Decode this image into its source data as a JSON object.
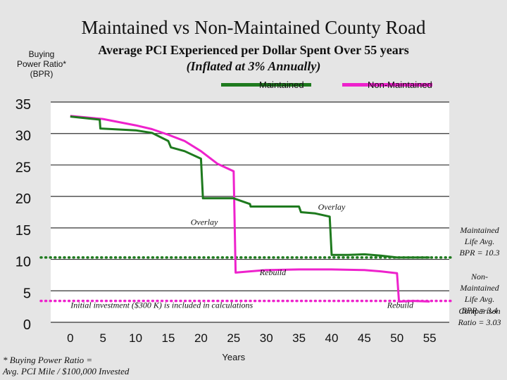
{
  "chart_data": {
    "type": "line",
    "title": "Maintained vs Non-Maintained County Road",
    "subtitle_line1": "Average PCI Experienced per Dollar Spent Over 55 years",
    "subtitle_line2": "(Inflated at 3% Annually)",
    "ylabel": "Buying Power Ratio* (BPR)",
    "xlabel": "Years",
    "xlim": [
      -3,
      58
    ],
    "ylim": [
      0,
      35
    ],
    "x_ticks": [
      0,
      5,
      10,
      15,
      20,
      25,
      30,
      35,
      40,
      45,
      50,
      55
    ],
    "y_ticks": [
      0,
      5,
      10,
      15,
      20,
      25,
      30,
      35
    ],
    "grid": "horizontal",
    "legend_position": "top-right",
    "series": [
      {
        "name": "Maintained",
        "color": "#1e7a1e",
        "points": [
          [
            0,
            32.7
          ],
          [
            4.5,
            32.2
          ],
          [
            4.6,
            30.8
          ],
          [
            10,
            30.5
          ],
          [
            12.5,
            30.1
          ],
          [
            15,
            28.8
          ],
          [
            15.4,
            27.8
          ],
          [
            17.5,
            27.2
          ],
          [
            20,
            26
          ],
          [
            20.3,
            19.7
          ],
          [
            25,
            19.7
          ],
          [
            27.5,
            18.8
          ],
          [
            27.6,
            18.4
          ],
          [
            30,
            18.4
          ],
          [
            35,
            18.4
          ],
          [
            35.3,
            17.5
          ],
          [
            37.5,
            17.3
          ],
          [
            39.7,
            16.8
          ],
          [
            40,
            10.7
          ],
          [
            42.5,
            10.7
          ],
          [
            45,
            10.8
          ],
          [
            47.5,
            10.6
          ],
          [
            50,
            10.3
          ],
          [
            55,
            10.3
          ]
        ]
      },
      {
        "name": "Non-Maintained",
        "color": "#ee22cc",
        "points": [
          [
            0,
            32.8
          ],
          [
            5,
            32.3
          ],
          [
            10,
            31.3
          ],
          [
            12.5,
            30.7
          ],
          [
            15,
            29.8
          ],
          [
            17.5,
            28.8
          ],
          [
            20,
            27.2
          ],
          [
            22.5,
            25.2
          ],
          [
            25,
            24
          ],
          [
            25.3,
            7.9
          ],
          [
            27.5,
            8.1
          ],
          [
            30,
            8.3
          ],
          [
            35,
            8.4
          ],
          [
            40,
            8.4
          ],
          [
            45,
            8.3
          ],
          [
            47.5,
            8.1
          ],
          [
            50,
            7.8
          ],
          [
            50.3,
            3.3
          ],
          [
            52.5,
            3.4
          ],
          [
            55,
            3.3
          ]
        ]
      }
    ],
    "reference_lines": [
      {
        "series": "Maintained",
        "y": 10.3,
        "color": "#1e7a1e"
      },
      {
        "series": "Non-Maintained",
        "y": 3.4,
        "color": "#ee22cc"
      }
    ],
    "annotations": [
      {
        "text": "Overlay",
        "x": 20.5,
        "y": 15.5
      },
      {
        "text": "Overlay",
        "x": 40,
        "y": 17.9
      },
      {
        "text": "Rebuild",
        "x": 31,
        "y": 7.5
      },
      {
        "text": "Rebuild",
        "x": 50.5,
        "y": 2.3
      },
      {
        "text": "Initial investment ($300 K) is included in calculations",
        "x": 14,
        "y": 2.3
      }
    ],
    "side_notes": [
      {
        "lines": [
          "Maintained",
          "Life Avg.",
          "BPR = 10.3"
        ]
      },
      {
        "lines": [
          "Non-",
          "Maintained",
          "Life Avg.",
          "BPR = 3.4"
        ]
      },
      {
        "lines": [
          "Comparison",
          "Ratio = 3.03"
        ]
      }
    ],
    "footnote": [
      "* Buying Power Ratio =",
      "Avg. PCI Mile / $100,000 Invested"
    ]
  }
}
